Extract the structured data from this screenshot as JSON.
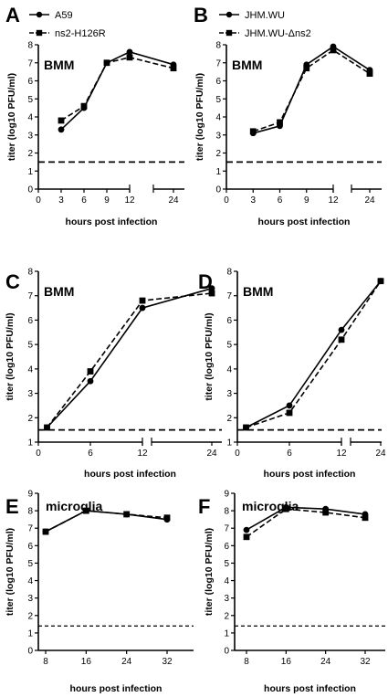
{
  "figure": {
    "panels": [
      {
        "letter": "A",
        "title": "BMM",
        "ylabel": "titer (log10 PFU/ml)",
        "xlabel": "hours post infection"
      },
      {
        "letter": "B",
        "title": "BMM",
        "ylabel": "titer (log10 PFU/ml)",
        "xlabel": "hours post infection"
      },
      {
        "letter": "C",
        "title": "BMM",
        "ylabel": "titer (log10 PFU/ml)",
        "xlabel": "hours post infection"
      },
      {
        "letter": "D",
        "title": "BMM",
        "ylabel": "titer (log10 PFU/ml)",
        "xlabel": "hours post infection"
      },
      {
        "letter": "E",
        "title": "microglia",
        "ylabel": "titer (log10 PFU/ml)",
        "xlabel": "hours post infection"
      },
      {
        "letter": "F",
        "title": "microglia",
        "ylabel": "titer (log10 PFU/ml)",
        "xlabel": "hours post infection"
      }
    ]
  },
  "chart_data": [
    {
      "type": "line",
      "panel": "A",
      "title": "BMM",
      "xlabel": "hours post infection",
      "ylabel": "titer (log10 PFU/ml)",
      "x_ticks": [
        0,
        3,
        6,
        9,
        12,
        24
      ],
      "x_axis_break": "between 12 and 24",
      "ylim": [
        0,
        8
      ],
      "y_ticks": [
        0,
        1,
        2,
        3,
        4,
        5,
        6,
        7,
        8
      ],
      "limit_of_detection": 1.5,
      "legend": "top-left",
      "series": [
        {
          "name": "A59",
          "marker": "circle",
          "style": "solid",
          "x": [
            3,
            6,
            9,
            12,
            24
          ],
          "y": [
            3.3,
            4.5,
            7.0,
            7.6,
            6.9
          ]
        },
        {
          "name": "ns2-H126R",
          "marker": "square",
          "style": "dashed",
          "x": [
            3,
            6,
            9,
            12,
            24
          ],
          "y": [
            3.8,
            4.6,
            7.0,
            7.3,
            6.7
          ]
        }
      ]
    },
    {
      "type": "line",
      "panel": "B",
      "title": "BMM",
      "xlabel": "hours post infection",
      "ylabel": "titer (log10 PFU/ml)",
      "x_ticks": [
        0,
        3,
        6,
        9,
        12,
        24
      ],
      "x_axis_break": "between 12 and 24",
      "ylim": [
        0,
        8
      ],
      "y_ticks": [
        0,
        1,
        2,
        3,
        4,
        5,
        6,
        7,
        8
      ],
      "limit_of_detection": 1.5,
      "legend": "top-left",
      "series": [
        {
          "name": "JHM.WU",
          "marker": "circle",
          "style": "solid",
          "x": [
            3,
            6,
            9,
            12,
            24
          ],
          "y": [
            3.1,
            3.5,
            6.9,
            7.9,
            6.6
          ]
        },
        {
          "name": "JHM.WU-Δns2",
          "marker": "square",
          "style": "dashed",
          "x": [
            3,
            6,
            9,
            12,
            24
          ],
          "y": [
            3.2,
            3.7,
            6.7,
            7.7,
            6.4
          ]
        }
      ]
    },
    {
      "type": "line",
      "panel": "C",
      "title": "BMM",
      "xlabel": "hours post infection",
      "ylabel": "titer (log10 PFU/ml)",
      "x_ticks": [
        0,
        6,
        12,
        24
      ],
      "x_axis_break": "between 12 and 24",
      "ylim": [
        1,
        8
      ],
      "y_ticks": [
        1,
        2,
        3,
        4,
        5,
        6,
        7,
        8
      ],
      "limit_of_detection": 1.5,
      "series": [
        {
          "marker": "circle",
          "style": "solid",
          "x": [
            1,
            6,
            12,
            24
          ],
          "y": [
            1.6,
            3.5,
            6.5,
            7.3
          ]
        },
        {
          "marker": "square",
          "style": "dashed",
          "x": [
            1,
            6,
            12,
            24
          ],
          "y": [
            1.6,
            3.9,
            6.8,
            7.1
          ]
        }
      ]
    },
    {
      "type": "line",
      "panel": "D",
      "title": "BMM",
      "xlabel": "hours post infection",
      "ylabel": "titer (log10 PFU/ml)",
      "x_ticks": [
        0,
        6,
        12,
        24
      ],
      "x_axis_break": "between 12 and 24",
      "ylim": [
        1,
        8
      ],
      "y_ticks": [
        1,
        2,
        3,
        4,
        5,
        6,
        7,
        8
      ],
      "limit_of_detection": 1.5,
      "series": [
        {
          "marker": "circle",
          "style": "solid",
          "x": [
            1,
            6,
            12,
            24
          ],
          "y": [
            1.6,
            2.5,
            5.6,
            7.6
          ]
        },
        {
          "marker": "square",
          "style": "dashed",
          "x": [
            1,
            6,
            12,
            24
          ],
          "y": [
            1.6,
            2.2,
            5.2,
            7.6
          ]
        }
      ]
    },
    {
      "type": "line",
      "panel": "E",
      "title": "microglia",
      "xlabel": "hours post infection",
      "ylabel": "titer (log10 PFU/ml)",
      "x_ticks": [
        8,
        16,
        24,
        32
      ],
      "ylim": [
        0,
        9
      ],
      "y_ticks": [
        0,
        1,
        2,
        3,
        4,
        5,
        6,
        7,
        8,
        9
      ],
      "limit_of_detection": 1.4,
      "series": [
        {
          "marker": "circle",
          "style": "solid",
          "x": [
            8,
            16,
            24,
            32
          ],
          "y": [
            6.8,
            8.0,
            7.8,
            7.5
          ]
        },
        {
          "marker": "square",
          "style": "dashed",
          "x": [
            8,
            16,
            24,
            32
          ],
          "y": [
            6.8,
            8.0,
            7.8,
            7.6
          ]
        }
      ]
    },
    {
      "type": "line",
      "panel": "F",
      "title": "microglia",
      "xlabel": "hours post infection",
      "ylabel": "titer (log10 PFU/ml)",
      "x_ticks": [
        8,
        16,
        24,
        32
      ],
      "ylim": [
        0,
        9
      ],
      "y_ticks": [
        0,
        1,
        2,
        3,
        4,
        5,
        6,
        7,
        8,
        9
      ],
      "limit_of_detection": 1.4,
      "series": [
        {
          "marker": "circle",
          "style": "solid",
          "x": [
            8,
            16,
            24,
            32
          ],
          "y": [
            6.9,
            8.2,
            8.1,
            7.8
          ]
        },
        {
          "marker": "square",
          "style": "dashed",
          "x": [
            8,
            16,
            24,
            32
          ],
          "y": [
            6.5,
            8.1,
            7.9,
            7.6
          ]
        }
      ]
    }
  ]
}
